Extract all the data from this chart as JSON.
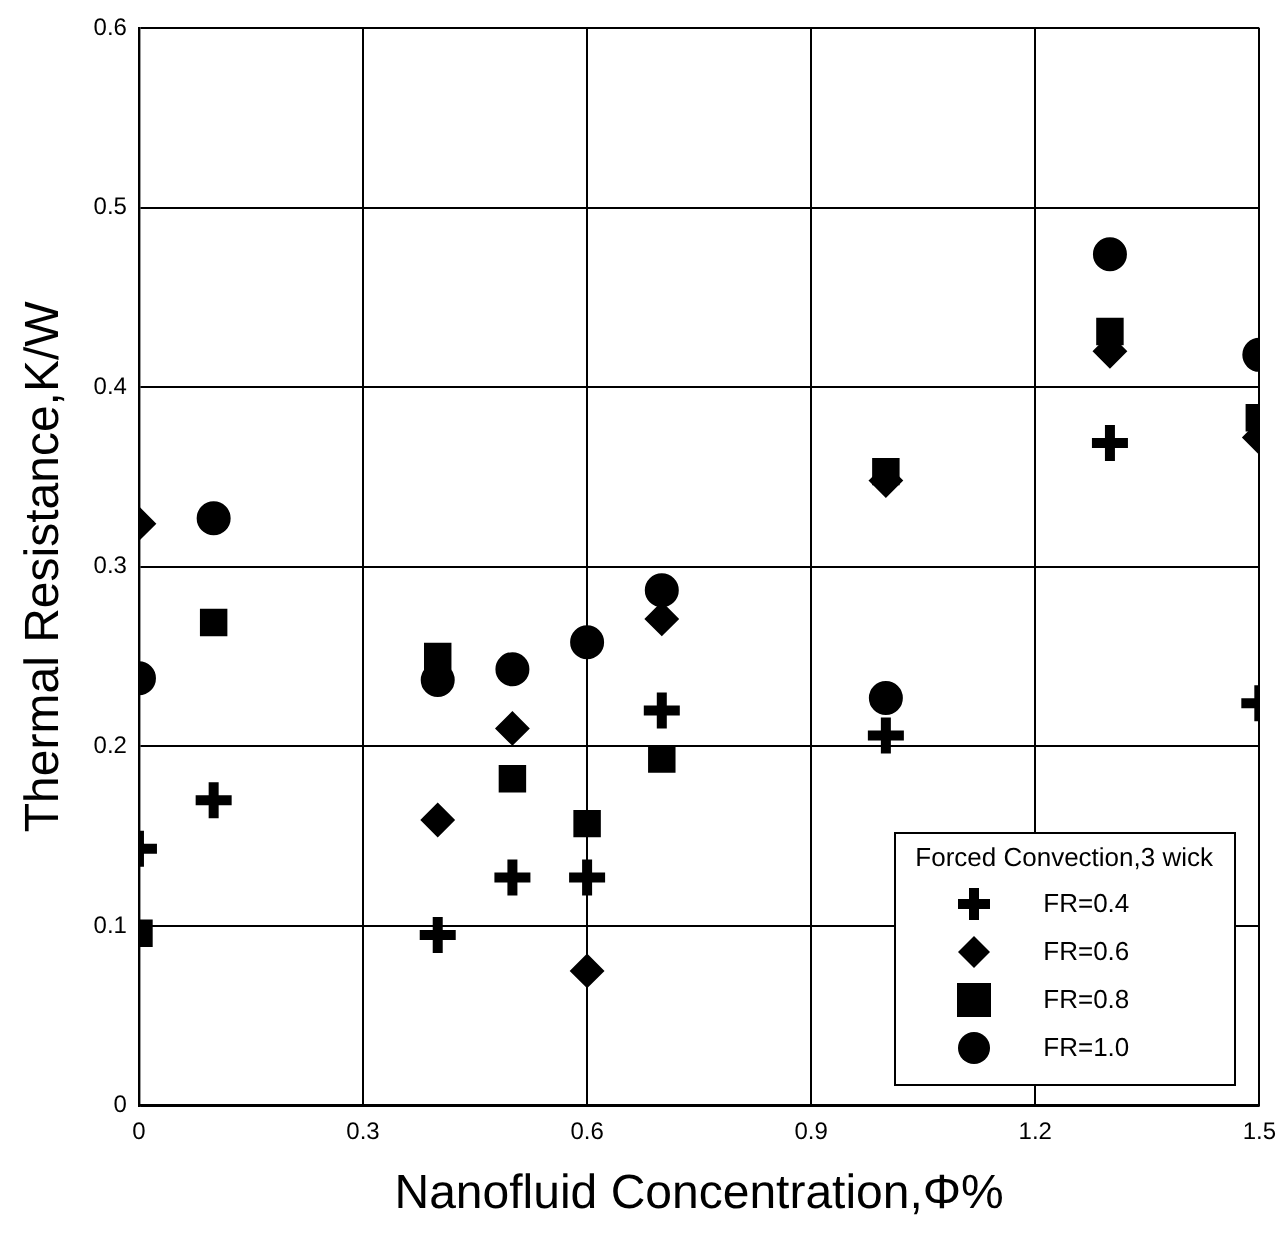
{
  "chart_data": {
    "type": "scatter",
    "xlabel": "Nanofluid Concentration,Φ%",
    "ylabel": "Thermal Resistance,K/W",
    "legend_title": "Forced Convection,3 wick",
    "x": [
      0,
      0.1,
      0.4,
      0.5,
      0.6,
      0.7,
      1.0,
      1.3,
      1.5
    ],
    "series": [
      {
        "name": "FR=0.4",
        "color": "#000000",
        "marker": "cross",
        "values": [
          0.143,
          0.17,
          0.095,
          0.127,
          0.127,
          0.22,
          0.206,
          0.369,
          0.224
        ]
      },
      {
        "name": "FR=0.6",
        "color": "#000000",
        "marker": "diamond",
        "values": [
          0.324,
          null,
          0.159,
          0.21,
          0.075,
          0.271,
          0.348,
          0.42,
          0.372
        ]
      },
      {
        "name": "FR=0.8",
        "color": "#000000",
        "marker": "square",
        "values": [
          0.096,
          0.269,
          0.25,
          0.182,
          0.157,
          0.193,
          0.353,
          0.431,
          0.383
        ]
      },
      {
        "name": "FR=1.0",
        "color": "#000000",
        "marker": "circle",
        "values": [
          0.238,
          0.327,
          0.237,
          0.243,
          0.258,
          0.287,
          0.227,
          0.474,
          0.418
        ]
      }
    ],
    "xlim": [
      0,
      1.5
    ],
    "xticks": [
      0,
      0.3,
      0.6,
      0.9,
      1.2,
      1.5
    ],
    "ylim": [
      0,
      0.6
    ],
    "yticks": [
      0,
      0.1,
      0.2,
      0.3,
      0.4,
      0.5,
      0.6
    ],
    "grid": true,
    "legend": "bottom right"
  }
}
